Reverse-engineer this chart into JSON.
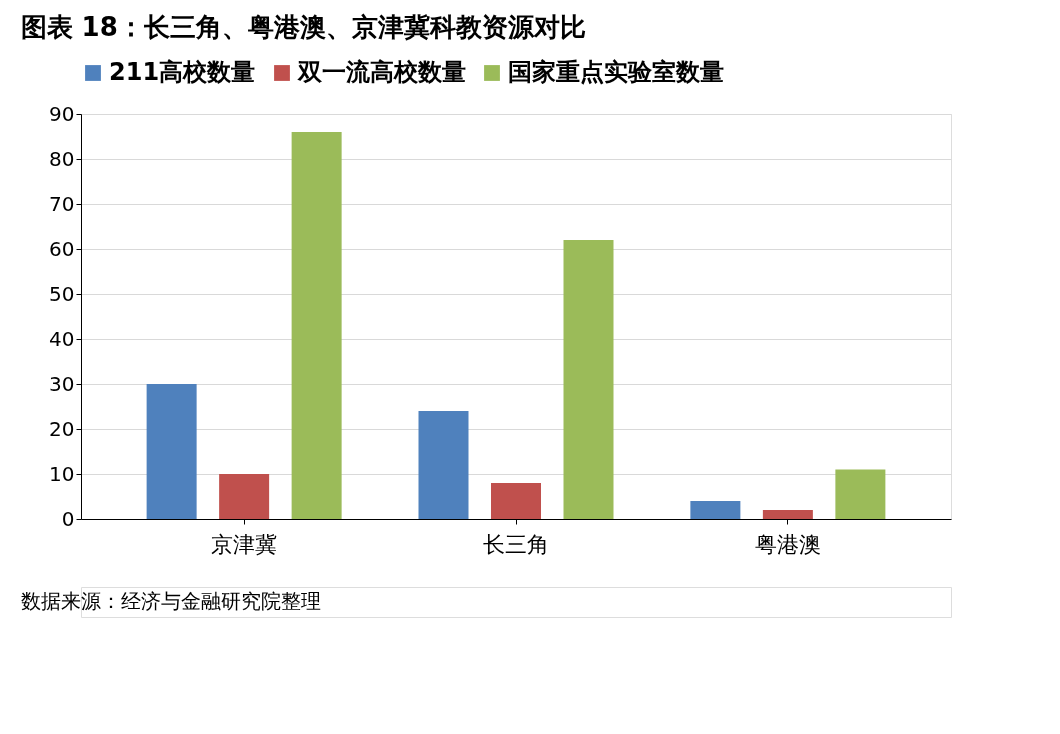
{
  "chart_data": {
    "type": "bar",
    "title": "图表 18：长三角、粤港澳、京津冀科教资源对比",
    "categories": [
      "京津冀",
      "长三角",
      "粤港澳"
    ],
    "series": [
      {
        "name": "211高校数量",
        "color": "#4f81bd",
        "values": [
          30,
          24,
          4
        ]
      },
      {
        "name": "双一流高校数量",
        "color": "#c0504d",
        "values": [
          10,
          8,
          2
        ]
      },
      {
        "name": "国家重点实验室数量",
        "color": "#9bbb59",
        "values": [
          86,
          62,
          11
        ]
      }
    ],
    "ylim": [
      0,
      90
    ],
    "yticks": [
      0,
      10,
      20,
      30,
      40,
      50,
      60,
      70,
      80,
      90
    ],
    "grid": "y",
    "legend": "top",
    "annotations": [
      "数据来源：经济与金融研究院整理"
    ]
  }
}
